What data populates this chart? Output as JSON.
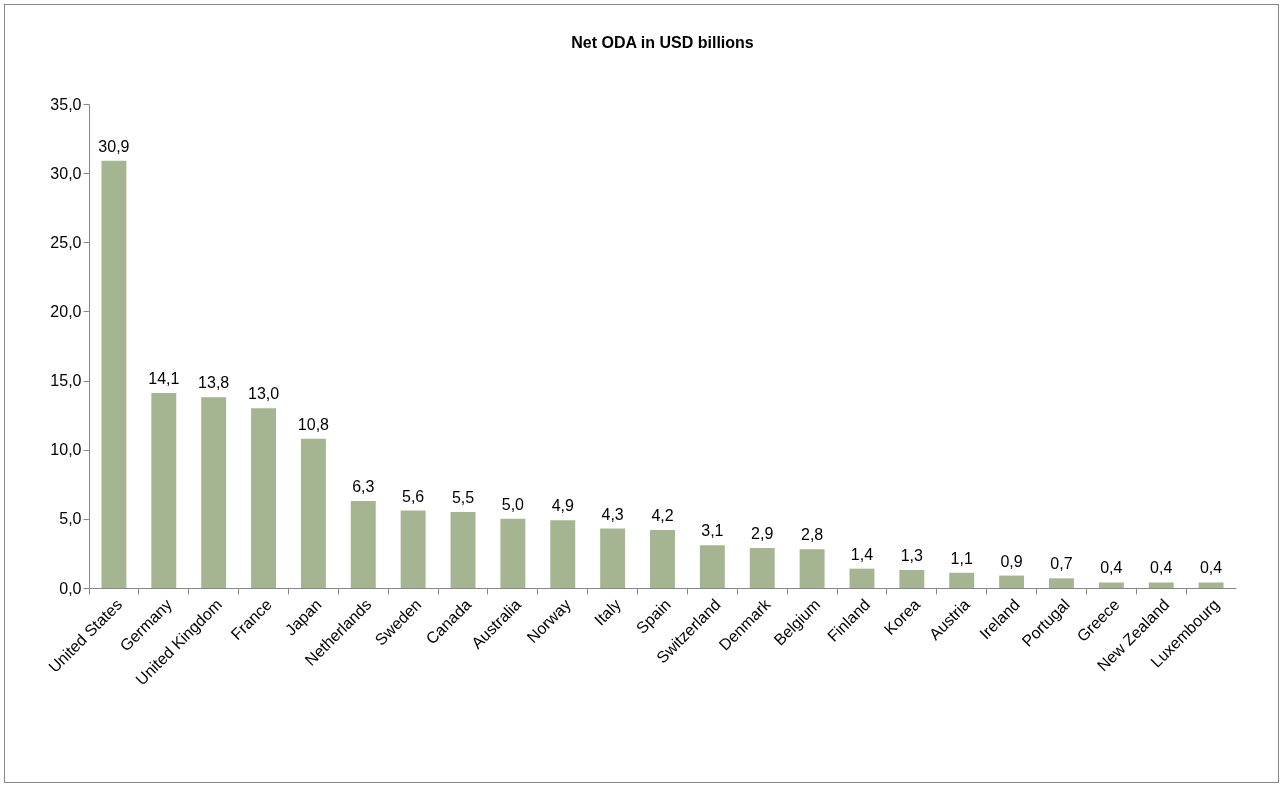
{
  "chart_data": {
    "type": "bar",
    "title": "Net ODA in USD billions",
    "categories": [
      "United States",
      "Germany",
      "United Kingdom",
      "France",
      "Japan",
      "Netherlands",
      "Sweden",
      "Canada",
      "Australia",
      "Norway",
      "Italy",
      "Spain",
      "Switzerland",
      "Denmark",
      "Belgium",
      "Finland",
      "Korea",
      "Austria",
      "Ireland",
      "Portugal",
      "Greece",
      "New Zealand",
      "Luxembourg"
    ],
    "values": [
      30.9,
      14.1,
      13.8,
      13.0,
      10.8,
      6.3,
      5.6,
      5.5,
      5.0,
      4.9,
      4.3,
      4.2,
      3.1,
      2.9,
      2.8,
      1.4,
      1.3,
      1.1,
      0.9,
      0.7,
      0.4,
      0.4,
      0.4
    ],
    "value_labels": [
      "30,9",
      "14,1",
      "13,8",
      "13,0",
      "10,8",
      "6,3",
      "5,6",
      "5,5",
      "5,0",
      "4,9",
      "4,3",
      "4,2",
      "3,1",
      "2,9",
      "2,8",
      "1,4",
      "1,3",
      "1,1",
      "0,9",
      "0,7",
      "0,4",
      "0,4",
      "0,4"
    ],
    "color": "#a5b592",
    "ylim": [
      0,
      35
    ],
    "yticks": [
      {
        "value": 0,
        "label": "0,0"
      },
      {
        "value": 5,
        "label": "5,0"
      },
      {
        "value": 10,
        "label": "10,0"
      },
      {
        "value": 15,
        "label": "15,0"
      },
      {
        "value": 20,
        "label": "20,0"
      },
      {
        "value": 25,
        "label": "25,0"
      },
      {
        "value": 30,
        "label": "30,0"
      },
      {
        "value": 35,
        "label": "35,0"
      }
    ],
    "grid": false
  }
}
